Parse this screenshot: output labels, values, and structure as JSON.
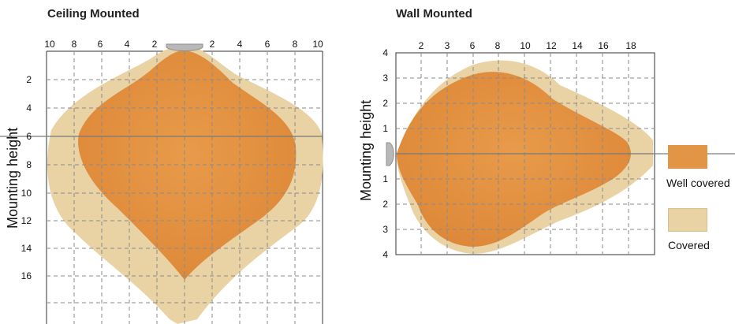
{
  "ceiling": {
    "title": "Ceiling Mounted",
    "y_label": "Mounting height",
    "x_ticks": [
      "10",
      "8",
      "6",
      "4",
      "2",
      "2",
      "4",
      "6",
      "8",
      "10"
    ],
    "y_ticks": [
      "2",
      "4",
      "6",
      "8",
      "10",
      "12",
      "14",
      "16"
    ]
  },
  "wall": {
    "title": "Wall Mounted",
    "y_label": "Mounting height",
    "x_ticks": [
      "2",
      "3",
      "6",
      "8",
      "10",
      "12",
      "14",
      "16",
      "18"
    ],
    "y_ticks": [
      "4",
      "3",
      "2",
      "1",
      "0",
      "1",
      "2",
      "3",
      "4"
    ]
  },
  "legend": {
    "well_covered": "Well covered",
    "covered": "Covered"
  },
  "colors": {
    "well_covered": "#e29544",
    "covered": "#e9d3a5",
    "sensor": "#b8b8b8"
  }
}
